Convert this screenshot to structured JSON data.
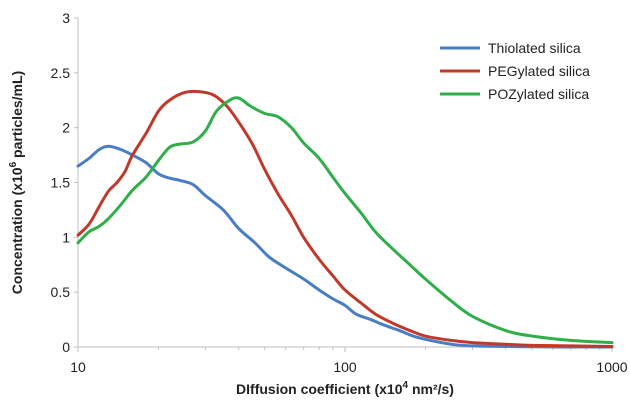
{
  "chart_data": {
    "type": "line",
    "xscale": "log",
    "xlim": [
      10,
      1000
    ],
    "ylim": [
      0,
      3
    ],
    "grid": false,
    "legend_position": "top-right",
    "xlabel": {
      "prefix": "DIffusion coefficient (x10",
      "sup": "4",
      "suffix": " nm²/s)"
    },
    "ylabel": {
      "prefix": "Concentration (x10",
      "sup": "6",
      "suffix": " particles/mL)"
    },
    "xticks": [
      {
        "value": 10,
        "label": "10"
      },
      {
        "value": 100,
        "label": "100"
      },
      {
        "value": 1000,
        "label": "1000"
      }
    ],
    "yticks": [
      {
        "value": 0,
        "label": "0"
      },
      {
        "value": 0.5,
        "label": "0.5"
      },
      {
        "value": 1,
        "label": "1"
      },
      {
        "value": 1.5,
        "label": "1.5"
      },
      {
        "value": 2,
        "label": "2"
      },
      {
        "value": 2.5,
        "label": "2.5"
      },
      {
        "value": 3,
        "label": "3"
      }
    ],
    "series": [
      {
        "name": "Thiolated silica",
        "color": "#4a7dc4",
        "x": [
          10,
          11,
          12,
          13,
          14.5,
          16,
          18,
          20,
          22,
          24,
          27,
          30,
          35,
          40,
          46,
          52,
          60,
          70,
          80,
          90,
          100,
          110,
          125,
          140,
          160,
          180,
          200,
          230,
          260,
          300,
          400,
          500,
          700,
          1000
        ],
        "y": [
          1.65,
          1.72,
          1.8,
          1.83,
          1.8,
          1.75,
          1.68,
          1.58,
          1.54,
          1.52,
          1.48,
          1.38,
          1.25,
          1.08,
          0.95,
          0.82,
          0.72,
          0.62,
          0.52,
          0.44,
          0.38,
          0.3,
          0.25,
          0.2,
          0.15,
          0.1,
          0.07,
          0.04,
          0.02,
          0.01,
          0.005,
          0.002,
          0.0,
          0.0
        ]
      },
      {
        "name": "PEGylated silica",
        "color": "#c0392b",
        "x": [
          10,
          11,
          12,
          13,
          14,
          15,
          16,
          18,
          20,
          22,
          25,
          28,
          32,
          36,
          40,
          45,
          50,
          56,
          63,
          70,
          80,
          90,
          100,
          115,
          130,
          150,
          175,
          200,
          250,
          300,
          400,
          500,
          700,
          1000
        ],
        "y": [
          1.02,
          1.12,
          1.28,
          1.42,
          1.5,
          1.6,
          1.75,
          1.95,
          2.15,
          2.25,
          2.32,
          2.33,
          2.3,
          2.2,
          2.05,
          1.85,
          1.62,
          1.4,
          1.2,
          1.0,
          0.8,
          0.65,
          0.52,
          0.4,
          0.3,
          0.22,
          0.15,
          0.1,
          0.06,
          0.04,
          0.025,
          0.015,
          0.01,
          0.005
        ]
      },
      {
        "name": "POZylated silica",
        "color": "#2fae4a",
        "x": [
          10,
          11,
          12,
          13,
          14.5,
          16,
          18,
          20,
          22,
          24,
          27,
          30,
          33,
          37,
          40,
          44,
          50,
          56,
          63,
          70,
          80,
          90,
          100,
          115,
          130,
          150,
          175,
          200,
          250,
          300,
          400,
          500,
          700,
          1000
        ],
        "y": [
          0.95,
          1.05,
          1.1,
          1.17,
          1.3,
          1.43,
          1.55,
          1.7,
          1.82,
          1.85,
          1.87,
          1.97,
          2.15,
          2.25,
          2.27,
          2.2,
          2.13,
          2.1,
          2.0,
          1.86,
          1.72,
          1.55,
          1.4,
          1.22,
          1.05,
          0.9,
          0.75,
          0.62,
          0.42,
          0.28,
          0.15,
          0.1,
          0.06,
          0.04
        ]
      }
    ]
  }
}
